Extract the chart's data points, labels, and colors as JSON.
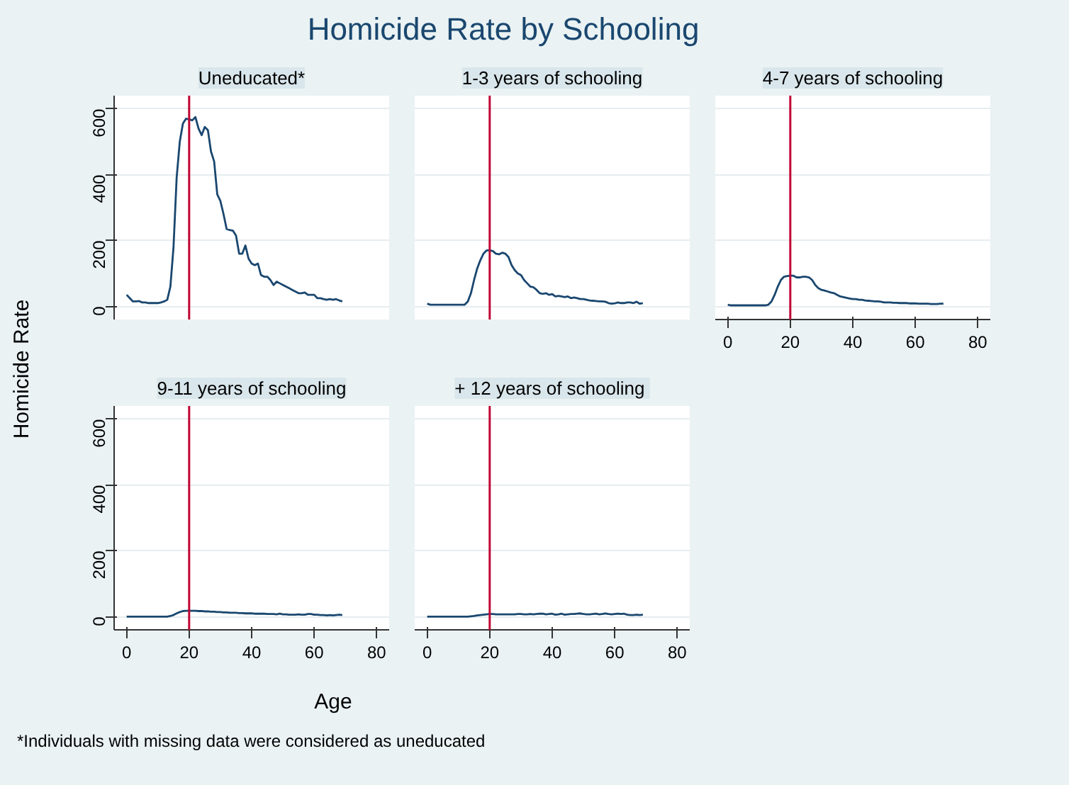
{
  "chart_data": [
    {
      "type": "line",
      "title": "Uneducated*",
      "color": "#1a476f",
      "xlim": [
        -4,
        84
      ],
      "ylim": [
        -40,
        640
      ],
      "xticks": [
        0,
        20,
        40,
        60,
        80
      ],
      "yticks": [
        0,
        200,
        400,
        600
      ],
      "grid": "y",
      "tick_labels": "y",
      "ref_lines": [
        {
          "axis": "x",
          "value": 20,
          "color": "#c10534"
        }
      ],
      "x": [
        0,
        1,
        2,
        3,
        4,
        5,
        6,
        7,
        8,
        9,
        10,
        11,
        12,
        13,
        14,
        15,
        16,
        17,
        18,
        19,
        20,
        21,
        22,
        23,
        24,
        25,
        26,
        27,
        28,
        29,
        30,
        31,
        32,
        33,
        34,
        35,
        36,
        37,
        38,
        39,
        40,
        41,
        42,
        43,
        44,
        45,
        46,
        47,
        48,
        49,
        50,
        51,
        52,
        53,
        54,
        55,
        56,
        57,
        58,
        59,
        60,
        61,
        62,
        63,
        64,
        65,
        66,
        67,
        68,
        69
      ],
      "values": [
        35,
        25,
        15,
        15,
        16,
        12,
        12,
        10,
        10,
        10,
        10,
        12,
        15,
        20,
        60,
        180,
        390,
        500,
        555,
        570,
        568,
        565,
        575,
        540,
        520,
        545,
        535,
        470,
        440,
        340,
        320,
        280,
        235,
        232,
        230,
        215,
        160,
        160,
        185,
        145,
        130,
        125,
        130,
        95,
        90,
        90,
        80,
        65,
        75,
        70,
        65,
        60,
        55,
        50,
        45,
        40,
        40,
        42,
        35,
        35,
        35,
        25,
        25,
        22,
        20,
        22,
        20,
        22,
        18,
        15
      ]
    },
    {
      "type": "line",
      "title": "1-3 years of schooling",
      "color": "#1a476f",
      "xlim": [
        -4,
        84
      ],
      "ylim": [
        -40,
        640
      ],
      "xticks": [
        0,
        20,
        40,
        60,
        80
      ],
      "yticks": [
        0,
        200,
        400,
        600
      ],
      "grid": "y",
      "tick_labels": false,
      "ref_lines": [
        {
          "axis": "x",
          "value": 20,
          "color": "#c10534"
        }
      ],
      "x": [
        0,
        1,
        2,
        3,
        4,
        5,
        6,
        7,
        8,
        9,
        10,
        11,
        12,
        13,
        14,
        15,
        16,
        17,
        18,
        19,
        20,
        21,
        22,
        23,
        24,
        25,
        26,
        27,
        28,
        29,
        30,
        31,
        32,
        33,
        34,
        35,
        36,
        37,
        38,
        39,
        40,
        41,
        42,
        43,
        44,
        45,
        46,
        47,
        48,
        49,
        50,
        51,
        52,
        53,
        54,
        55,
        56,
        57,
        58,
        59,
        60,
        61,
        62,
        63,
        64,
        65,
        66,
        67,
        68,
        69
      ],
      "values": [
        8,
        5,
        5,
        5,
        5,
        5,
        5,
        5,
        5,
        5,
        5,
        5,
        5,
        15,
        40,
        80,
        115,
        140,
        160,
        170,
        170,
        168,
        160,
        158,
        163,
        160,
        150,
        125,
        110,
        100,
        95,
        80,
        70,
        60,
        58,
        50,
        40,
        38,
        40,
        35,
        37,
        30,
        32,
        30,
        28,
        30,
        25,
        27,
        25,
        22,
        22,
        20,
        18,
        17,
        16,
        15,
        15,
        14,
        10,
        8,
        9,
        12,
        10,
        10,
        12,
        12,
        10,
        14,
        8,
        10
      ]
    },
    {
      "type": "line",
      "title": "4-7 years of schooling",
      "color": "#1a476f",
      "xlim": [
        -4,
        84
      ],
      "ylim": [
        -40,
        640
      ],
      "xticks": [
        0,
        20,
        40,
        60,
        80
      ],
      "yticks": [
        0,
        200,
        400,
        600
      ],
      "grid": "y",
      "tick_labels": "x",
      "ref_lines": [
        {
          "axis": "x",
          "value": 20,
          "color": "#c10534"
        }
      ],
      "x": [
        0,
        1,
        2,
        3,
        4,
        5,
        6,
        7,
        8,
        9,
        10,
        11,
        12,
        13,
        14,
        15,
        16,
        17,
        18,
        19,
        20,
        21,
        22,
        23,
        24,
        25,
        26,
        27,
        28,
        29,
        30,
        31,
        32,
        33,
        34,
        35,
        36,
        37,
        38,
        39,
        40,
        41,
        42,
        43,
        44,
        45,
        46,
        47,
        48,
        49,
        50,
        51,
        52,
        53,
        54,
        55,
        56,
        57,
        58,
        59,
        60,
        61,
        62,
        63,
        64,
        65,
        66,
        67,
        68,
        69
      ],
      "values": [
        5,
        3,
        3,
        3,
        3,
        3,
        3,
        3,
        3,
        3,
        3,
        3,
        3,
        5,
        15,
        35,
        60,
        80,
        90,
        92,
        93,
        93,
        88,
        88,
        90,
        90,
        88,
        80,
        65,
        55,
        50,
        48,
        45,
        42,
        40,
        35,
        30,
        28,
        26,
        24,
        22,
        22,
        20,
        20,
        18,
        17,
        16,
        15,
        15,
        14,
        12,
        12,
        12,
        11,
        11,
        10,
        10,
        10,
        9,
        9,
        9,
        8,
        8,
        8,
        8,
        7,
        7,
        7,
        8,
        8
      ]
    },
    {
      "type": "line",
      "title": "9-11 years of schooling",
      "color": "#1a476f",
      "xlim": [
        -4,
        84
      ],
      "ylim": [
        -40,
        640
      ],
      "xticks": [
        0,
        20,
        40,
        60,
        80
      ],
      "yticks": [
        0,
        200,
        400,
        600
      ],
      "grid": "y",
      "ref_lines": [
        {
          "axis": "x",
          "value": 20,
          "color": "#c10534"
        }
      ],
      "x": [
        0,
        1,
        2,
        3,
        4,
        5,
        6,
        7,
        8,
        9,
        10,
        11,
        12,
        13,
        14,
        15,
        16,
        17,
        18,
        19,
        20,
        21,
        22,
        23,
        24,
        25,
        26,
        27,
        28,
        29,
        30,
        31,
        32,
        33,
        34,
        35,
        36,
        37,
        38,
        39,
        40,
        41,
        42,
        43,
        44,
        45,
        46,
        47,
        48,
        49,
        50,
        51,
        52,
        53,
        54,
        55,
        56,
        57,
        58,
        59,
        60,
        61,
        62,
        63,
        64,
        65,
        66,
        67,
        68,
        69
      ],
      "values": [
        0,
        0,
        0,
        0,
        0,
        0,
        0,
        0,
        0,
        0,
        0,
        0,
        0,
        0,
        2,
        5,
        10,
        14,
        17,
        18,
        18,
        18,
        18,
        17,
        17,
        16,
        16,
        15,
        15,
        14,
        14,
        13,
        13,
        12,
        12,
        12,
        11,
        11,
        10,
        10,
        10,
        9,
        9,
        9,
        9,
        8,
        8,
        8,
        7,
        9,
        7,
        7,
        6,
        6,
        6,
        7,
        6,
        6,
        8,
        8,
        6,
        6,
        5,
        5,
        4,
        5,
        4,
        5,
        6,
        5
      ]
    },
    {
      "type": "line",
      "title": "+ 12  years of schooling",
      "color": "#1a476f",
      "xlim": [
        -4,
        84
      ],
      "ylim": [
        -40,
        640
      ],
      "xticks": [
        0,
        20,
        40,
        60,
        80
      ],
      "yticks": [
        0,
        200,
        400,
        600
      ],
      "grid": "y",
      "tick_labels": "x",
      "ref_lines": [
        {
          "axis": "x",
          "value": 20,
          "color": "#c10534"
        }
      ],
      "x": [
        0,
        1,
        2,
        3,
        4,
        5,
        6,
        7,
        8,
        9,
        10,
        11,
        12,
        13,
        14,
        15,
        16,
        17,
        18,
        19,
        20,
        21,
        22,
        23,
        24,
        25,
        26,
        27,
        28,
        29,
        30,
        31,
        32,
        33,
        34,
        35,
        36,
        37,
        38,
        39,
        40,
        41,
        42,
        43,
        44,
        45,
        46,
        47,
        48,
        49,
        50,
        51,
        52,
        53,
        54,
        55,
        56,
        57,
        58,
        59,
        60,
        61,
        62,
        63,
        64,
        65,
        66,
        67,
        68,
        69
      ],
      "values": [
        0,
        0,
        0,
        0,
        0,
        0,
        0,
        0,
        0,
        0,
        0,
        0,
        0,
        0,
        1,
        2,
        4,
        5,
        6,
        7,
        8,
        8,
        7,
        7,
        7,
        7,
        7,
        7,
        7,
        8,
        8,
        7,
        7,
        8,
        7,
        8,
        9,
        9,
        7,
        8,
        9,
        6,
        7,
        9,
        6,
        7,
        8,
        8,
        9,
        10,
        8,
        7,
        7,
        8,
        9,
        7,
        8,
        10,
        8,
        7,
        8,
        9,
        8,
        9,
        6,
        5,
        5,
        6,
        5,
        6
      ]
    },
    {
      "type": "other",
      "title": "Homicide Rate by Schooling",
      "xlabel": "Age",
      "ylabel": "Homicide Rate",
      "annotations": [
        "*Individuals with missing data were considered as uneducated"
      ]
    }
  ]
}
